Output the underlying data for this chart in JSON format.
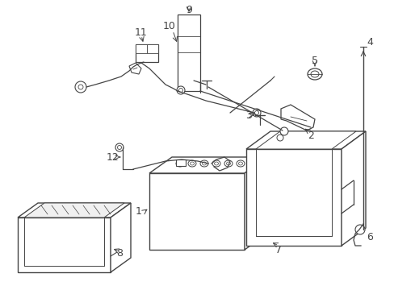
{
  "background_color": "#ffffff",
  "line_color": "#444444",
  "figsize": [
    4.89,
    3.6
  ],
  "dpi": 100,
  "xlim": [
    0,
    489
  ],
  "ylim": [
    0,
    360
  ]
}
